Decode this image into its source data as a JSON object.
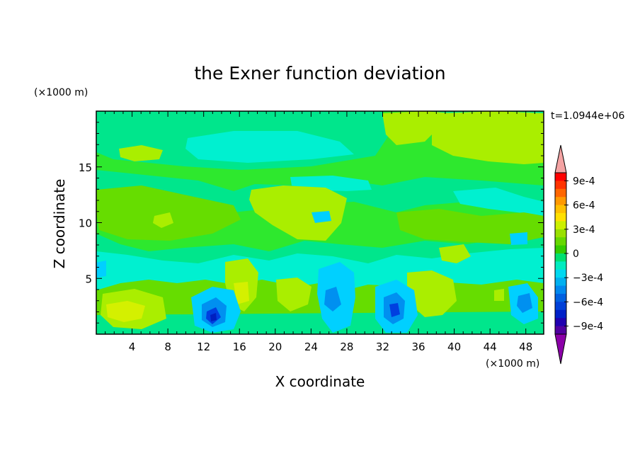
{
  "chart_data": {
    "type": "heatmap",
    "title": "the Exner function deviation",
    "xlabel": "X coordinate",
    "ylabel": "Z coordinate",
    "x_unit": "(×1000 m)",
    "y_unit": "(×1000 m)",
    "time_label": "t=1.0944e+06",
    "xlim": [
      0,
      50
    ],
    "ylim": [
      0,
      20
    ],
    "x_ticks": [
      4,
      8,
      12,
      16,
      20,
      24,
      28,
      32,
      36,
      40,
      44,
      48
    ],
    "x_tick_labels": [
      "4",
      "8",
      "12",
      "16",
      "20",
      "24",
      "28",
      "32",
      "36",
      "40",
      "44",
      "48"
    ],
    "y_ticks": [
      5,
      10,
      15
    ],
    "y_tick_labels": [
      "5",
      "10",
      "15"
    ],
    "colorbar": {
      "ticks": [
        0.0009,
        0.0006,
        0.0003,
        0,
        -0.0003,
        -0.0006,
        -0.0009
      ],
      "tick_labels": [
        "9e-4",
        "6e-4",
        "3e-4",
        "0",
        "−3e-4",
        "−6e-4",
        "−9e-4"
      ],
      "levels_top_to_bottom": [
        "#ff0000",
        "#ff3300",
        "#ff6600",
        "#ff9900",
        "#ffc000",
        "#ffe000",
        "#ccf000",
        "#99e000",
        "#66d800",
        "#33cc00",
        "#00e070",
        "#00ecc0",
        "#00d8f0",
        "#00b0f0",
        "#0088ee",
        "#0060e0",
        "#0040d8",
        "#0020c8",
        "#2000b0",
        "#5000a0"
      ],
      "over_color": "#f4a3a3",
      "under_color": "#8b00a8"
    },
    "field_levels": {
      "background": "#2ee82e",
      "light_green": "#66dd00",
      "yellow_green": "#aaee00",
      "yellow": "#d4f000",
      "aqua_green": "#00e68c",
      "cyan": "#00f0d0",
      "light_blue": "#00d0ff",
      "blue": "#0090f0",
      "dark_blue": "#0040e0",
      "deep_blue": "#0020c0"
    }
  }
}
